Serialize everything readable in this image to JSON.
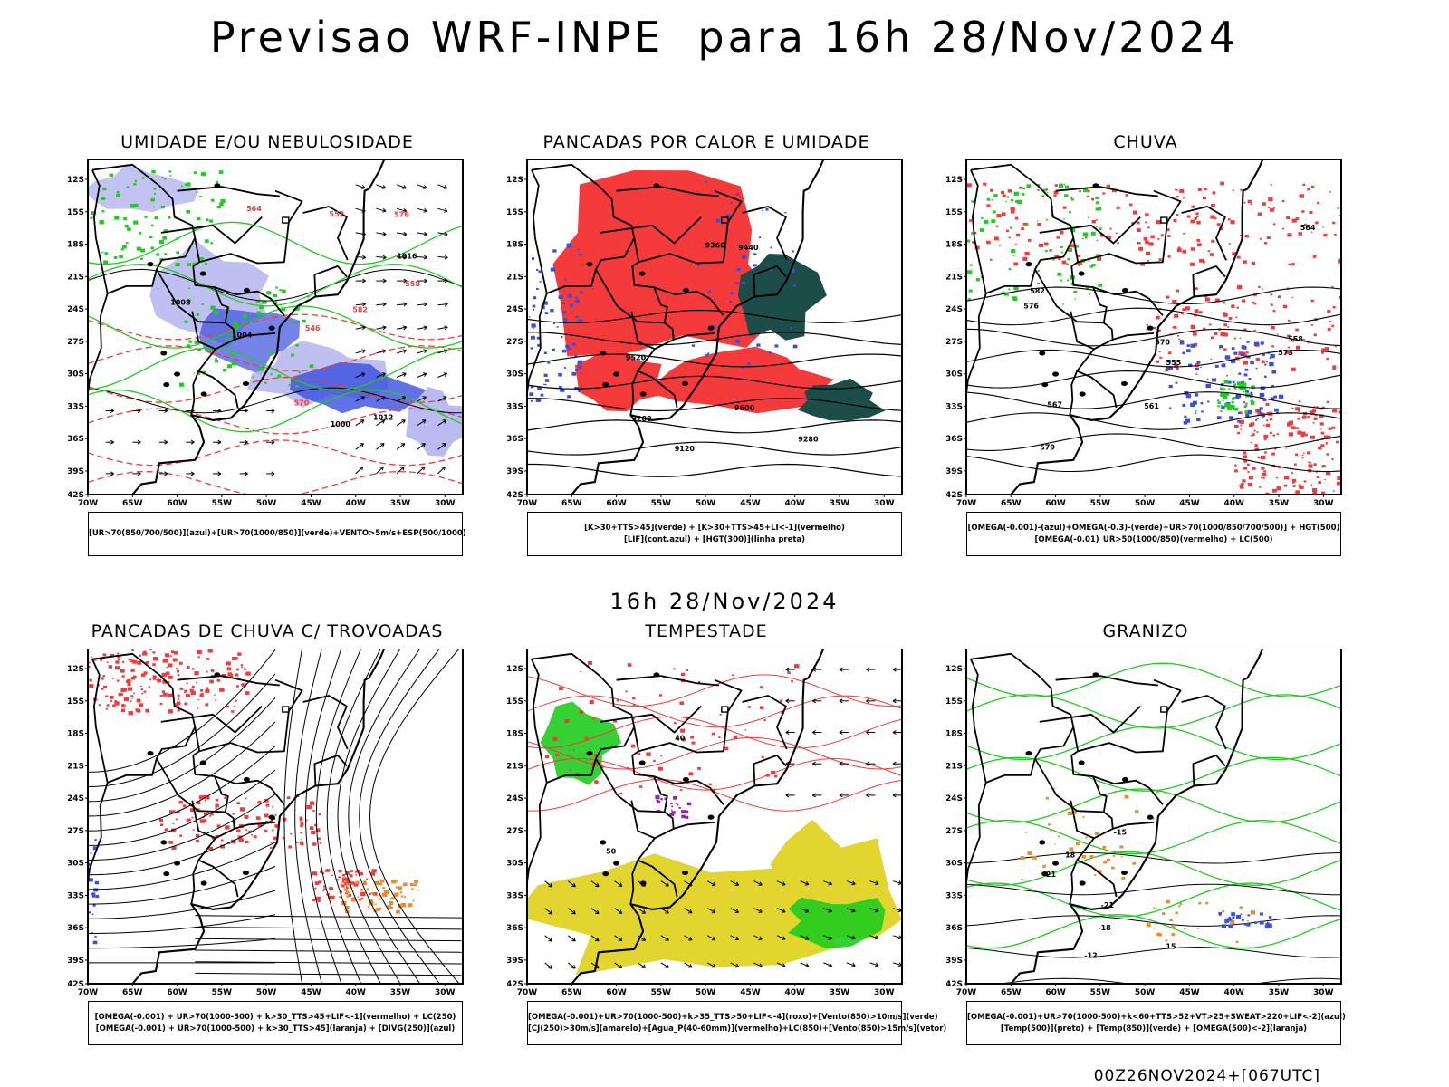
{
  "title": "Previsao WRF-INPE  para 16h 28/Nov/2024",
  "subtitle": "16h 28/Nov/2024",
  "footer": "00Z26NOV2024+[067UTC]",
  "lat_labels": [
    "12S",
    "15S",
    "18S",
    "21S",
    "24S",
    "27S",
    "30S",
    "33S",
    "36S",
    "39S",
    "42S"
  ],
  "lon_labels": [
    "70W",
    "65W",
    "60W",
    "55W",
    "50W",
    "45W",
    "40W",
    "35W",
    "30W"
  ],
  "colors": {
    "blue": "#3a4fe0",
    "light_blue": "#b4b4f0",
    "green": "#1fcc1f",
    "red": "#f43a3a",
    "dark_teal": "#1d4d48",
    "yellow": "#e3d52f",
    "orange": "#ee8a28",
    "purple": "#9a1eb4",
    "black": "#000000"
  },
  "panels": [
    {
      "title": "UMIDADE E/OU NEBULOSIDADE",
      "legend": [
        "[UR>70(850/700/500)](azul)+[UR>70(1000/850)](verde)+VENTO>5m/s+ESP(500/1000)"
      ],
      "contour_labels": [
        "1008",
        "1012",
        "1004",
        "1000",
        "1016",
        "576",
        "570",
        "564",
        "558",
        "552",
        "546",
        "582"
      ]
    },
    {
      "title": "PANCADAS POR CALOR E UMIDADE",
      "legend": [
        "[K>30+TTS>45](verde) + [K>30+TTS>45+LI<-1](vermelho)",
        "[LIF](cont.azul) + [HGT(300)](linha preta)"
      ],
      "contour_labels": [
        "9600",
        "9520",
        "9440",
        "9360",
        "9280",
        "9200",
        "9120"
      ]
    },
    {
      "title": "CHUVA",
      "legend": [
        "[OMEGA(-0.001)-(azul)+OMEGA(-0.3)-(verde)+UR>70(1000/850/700/500)] + HGT(500)",
        "[OMEGA(-0.01)_UR>50(1000/850)(vermelho) + LC(500)"
      ],
      "contour_labels": [
        "582",
        "579",
        "576",
        "573",
        "570",
        "567",
        "564",
        "561",
        "558",
        "555"
      ]
    },
    {
      "title": "PANCADAS DE CHUVA C/ TROVOADAS",
      "legend": [
        "[OMEGA(-0.001) + UR>70(1000-500) + k>30_TTS>45+LIF<-1](vermelho) + LC(250)",
        "[OMEGA(-0.001) + UR>70(1000-500) + k>30_TTS>45](laranja) + [DIVG(250)](azul)"
      ],
      "contour_labels": []
    },
    {
      "title": "TEMPESTADE",
      "legend": [
        "[OMEGA(-0.001)+UR>70(1000-500)+k>35_TTS>50+LIF<-4](roxo)+[Vento(850)>10m/s](verde)",
        "[CJ(250)>30m/s](amarelo)+[Agua_P(40-60mm)](vermelho)+LC(850)+[Vento(850)>15m/s](vetor)"
      ],
      "contour_labels": [
        "40",
        "50"
      ]
    },
    {
      "title": "GRANIZO",
      "legend": [
        "[OMEGA(-0.001)+UR>70(1000-500)+k<60+TTS>52+VT>25+SWEAT>220+LIF<-2](azul)",
        "[Temp(500)](preto) + [Temp(850)](verde) + [OMEGA(500)<-2](laranja)"
      ],
      "contour_labels": [
        "-12",
        "-15",
        "-18",
        "-21",
        "15",
        "18",
        "21"
      ]
    }
  ]
}
